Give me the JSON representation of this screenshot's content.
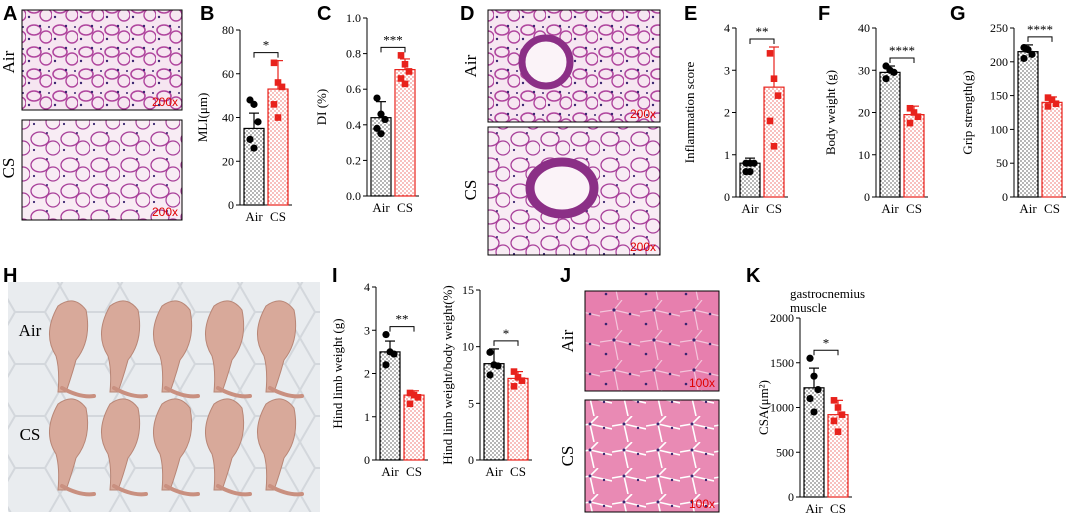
{
  "panels": {
    "A": {
      "letter": "A",
      "labels": [
        "Air",
        "CS"
      ],
      "mag": [
        "200x",
        "200x"
      ]
    },
    "D": {
      "letter": "D",
      "labels": [
        "Air",
        "CS"
      ],
      "mag": [
        "200x",
        "200x"
      ]
    },
    "H": {
      "letter": "H",
      "labels": [
        "Air",
        "CS"
      ]
    },
    "J": {
      "letter": "J",
      "labels": [
        "Air",
        "CS"
      ],
      "mag": [
        "100x",
        "100x"
      ]
    }
  },
  "colors": {
    "air": "#000000",
    "cs": "#e8221c",
    "he_bg": "#f4e1ee",
    "he_cell": "#b0469e",
    "he_nuc": "#3a2470",
    "muscle": "#e77fae"
  },
  "chart_data": [
    {
      "id": "B",
      "letter": "B",
      "type": "bar",
      "categories": [
        "Air",
        "CS"
      ],
      "ylabel": "MLI(μm)",
      "ylim": [
        0,
        80
      ],
      "yticks": [
        0,
        20,
        40,
        60,
        80
      ],
      "means": [
        35,
        53
      ],
      "errors": [
        7,
        13
      ],
      "points": [
        [
          48,
          46,
          38,
          30,
          26
        ],
        [
          65,
          56,
          54,
          46,
          40
        ]
      ],
      "significance": "*"
    },
    {
      "id": "C",
      "letter": "C",
      "type": "bar",
      "categories": [
        "Air",
        "CS"
      ],
      "ylabel": "DI (%)",
      "ylim": [
        0,
        1.0
      ],
      "yticks": [
        0.0,
        0.2,
        0.4,
        0.6,
        0.8,
        1.0
      ],
      "tick_decimals": 1,
      "means": [
        0.44,
        0.71
      ],
      "errors": [
        0.09,
        0.06
      ],
      "points": [
        [
          0.55,
          0.46,
          0.43,
          0.38,
          0.35
        ],
        [
          0.79,
          0.74,
          0.7,
          0.66,
          0.63
        ]
      ],
      "significance": "***"
    },
    {
      "id": "E",
      "letter": "E",
      "type": "bar",
      "categories": [
        "Air",
        "CS"
      ],
      "ylabel": "Inflammation score",
      "ylim": [
        0,
        4
      ],
      "yticks": [
        0,
        1,
        2,
        3,
        4
      ],
      "means": [
        0.8,
        2.6
      ],
      "errors": [
        0.12,
        0.95
      ],
      "points": [
        [
          0.8,
          0.8,
          0.8,
          0.6,
          0.6
        ],
        [
          3.4,
          2.8,
          2.4,
          1.8,
          1.2
        ]
      ],
      "significance": "**"
    },
    {
      "id": "F",
      "letter": "F",
      "type": "bar",
      "categories": [
        "Air",
        "CS"
      ],
      "ylabel": "Body weight (g)",
      "ylim": [
        0,
        40
      ],
      "yticks": [
        0,
        10,
        20,
        30,
        40
      ],
      "means": [
        29.5,
        19.5
      ],
      "errors": [
        1.5,
        2.0
      ],
      "points": [
        [
          31,
          30,
          29.5,
          28
        ],
        [
          21,
          20,
          19,
          17.5
        ]
      ],
      "significance": "****"
    },
    {
      "id": "G",
      "letter": "G",
      "type": "bar",
      "categories": [
        "Air",
        "CS"
      ],
      "ylabel": "Grip strength(g)",
      "ylim": [
        0,
        250
      ],
      "yticks": [
        0,
        50,
        100,
        150,
        200,
        250
      ],
      "means": [
        215,
        140
      ],
      "errors": [
        10,
        8
      ],
      "points": [
        [
          221,
          218,
          211,
          205
        ],
        [
          147,
          144,
          138,
          134
        ]
      ],
      "significance": "****"
    },
    {
      "id": "I1",
      "letter": "I",
      "type": "bar",
      "categories": [
        "Air",
        "CS"
      ],
      "ylabel": "Hind limb weight (g)",
      "ylim": [
        0,
        4
      ],
      "yticks": [
        0,
        1,
        2,
        3,
        4
      ],
      "means": [
        2.5,
        1.5
      ],
      "errors": [
        0.25,
        0.1
      ],
      "points": [
        [
          2.9,
          2.5,
          2.45,
          2.2
        ],
        [
          1.55,
          1.5,
          1.45,
          1.3
        ]
      ],
      "significance": "**"
    },
    {
      "id": "I2",
      "letter": "",
      "type": "bar",
      "categories": [
        "Air",
        "CS"
      ],
      "ylabel": "Hind limb weight/body weight(%)",
      "ylim": [
        0,
        15
      ],
      "yticks": [
        0,
        5,
        10,
        15
      ],
      "means": [
        8.5,
        7.2
      ],
      "errors": [
        1.3,
        0.6
      ],
      "points": [
        [
          9.5,
          8.4,
          8.3,
          7.5
        ],
        [
          7.8,
          7.3,
          7.0,
          6.5
        ]
      ],
      "significance": "*"
    },
    {
      "id": "K",
      "letter": "K",
      "type": "bar",
      "categories": [
        "Air",
        "CS"
      ],
      "ylabel": "CSA(μm²)",
      "title": "gastrocnemius muscle",
      "ylim": [
        0,
        2000
      ],
      "yticks": [
        0,
        500,
        1000,
        1500,
        2000
      ],
      "means": [
        1220,
        920
      ],
      "errors": [
        220,
        160
      ],
      "points": [
        [
          1550,
          1350,
          1200,
          1100,
          950
        ],
        [
          1080,
          1000,
          920,
          850,
          730
        ]
      ],
      "significance": "*"
    }
  ]
}
